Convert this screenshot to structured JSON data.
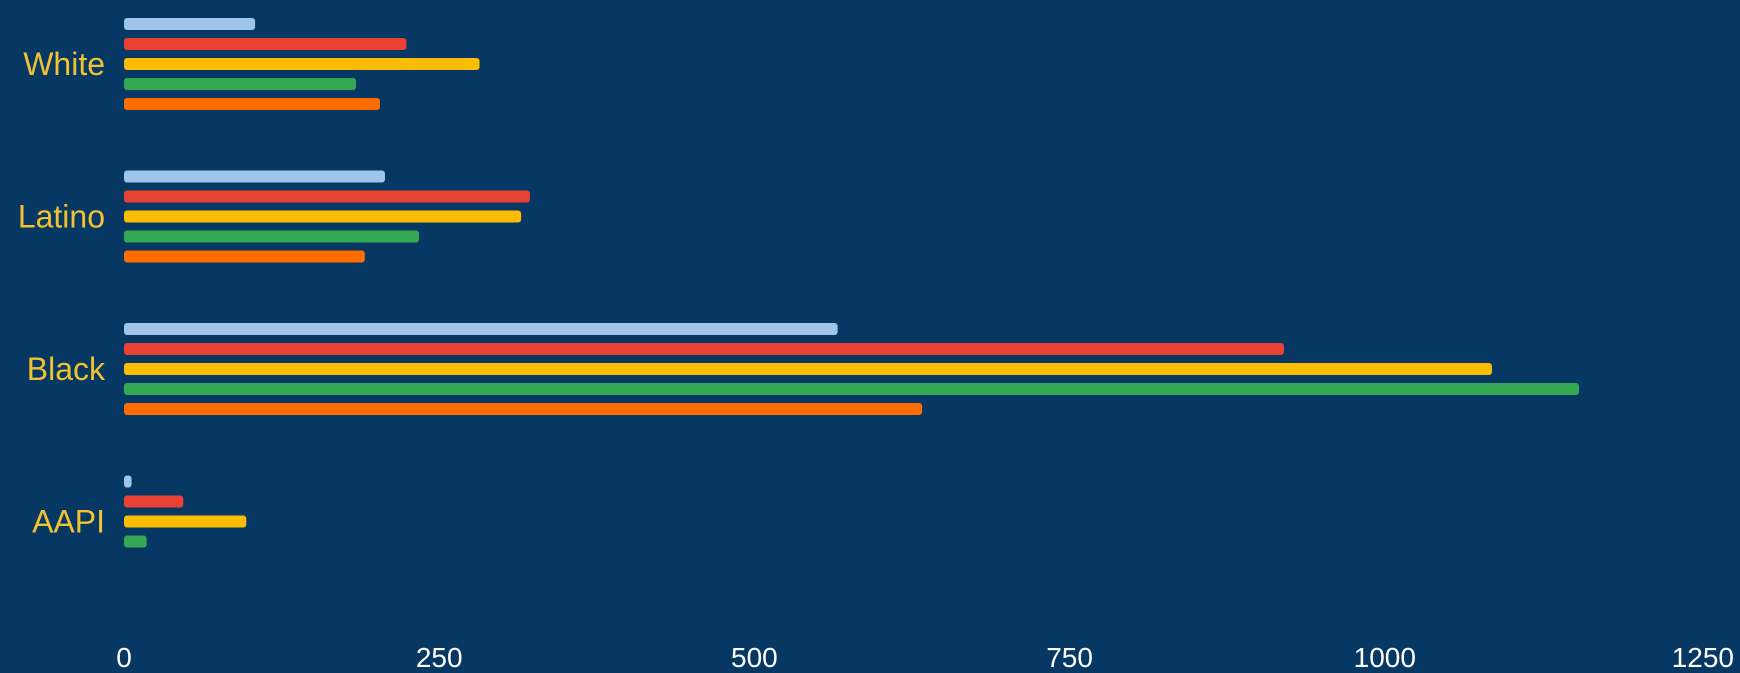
{
  "chart_data": {
    "type": "bar",
    "orientation": "horizontal",
    "categories": [
      "White",
      "Latino",
      "Black",
      "AAPI"
    ],
    "series": [
      {
        "color": "#9fc5e8",
        "values": [
          104,
          207,
          566,
          6
        ]
      },
      {
        "color": "#e94235",
        "values": [
          224,
          322,
          920,
          47
        ]
      },
      {
        "color": "#fbbc04",
        "values": [
          282,
          315,
          1085,
          97
        ]
      },
      {
        "color": "#34a853",
        "values": [
          184,
          234,
          1154,
          18
        ]
      },
      {
        "color": "#ff6d01",
        "values": [
          203,
          191,
          633,
          null
        ]
      }
    ],
    "xlim": [
      0,
      1250
    ],
    "xticks": [
      "0",
      "250",
      "500",
      "750",
      "1000",
      "1250"
    ],
    "xlabel": "",
    "ylabel": "",
    "legend": "none",
    "grid": false
  },
  "colors": {
    "background": "#073763",
    "category_label": "#f1c232",
    "tick_label": "#ffffff"
  }
}
